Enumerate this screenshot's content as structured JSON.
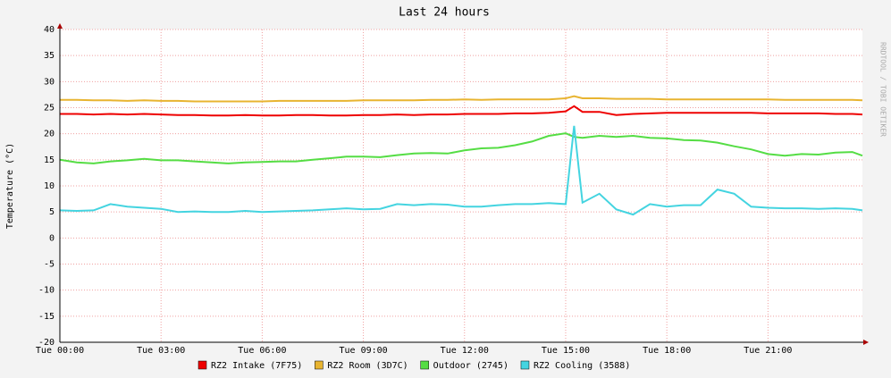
{
  "chart_data": {
    "type": "line",
    "title": "Last 24 hours",
    "y_label": "Temperature (°C)",
    "side_label": "RRDTOOL / TOBI OETIKER",
    "x": [
      0,
      0.5,
      1,
      1.5,
      2,
      2.5,
      3,
      3.5,
      4,
      4.5,
      5,
      5.5,
      6,
      6.5,
      7,
      7.5,
      8,
      8.5,
      9,
      9.5,
      10,
      10.5,
      11,
      11.5,
      12,
      12.5,
      13,
      13.5,
      14,
      14.5,
      15,
      15.25,
      15.5,
      16,
      16.5,
      17,
      17.5,
      18,
      18.5,
      19,
      19.5,
      20,
      20.5,
      21,
      21.5,
      22,
      22.5,
      23,
      23.5,
      23.8
    ],
    "xlim": [
      0,
      23.8
    ],
    "xticks": [
      {
        "value": 0,
        "label": "Tue 00:00"
      },
      {
        "value": 3,
        "label": "Tue 03:00"
      },
      {
        "value": 6,
        "label": "Tue 06:00"
      },
      {
        "value": 9,
        "label": "Tue 09:00"
      },
      {
        "value": 12,
        "label": "Tue 12:00"
      },
      {
        "value": 15,
        "label": "Tue 15:00"
      },
      {
        "value": 18,
        "label": "Tue 18:00"
      },
      {
        "value": 21,
        "label": "Tue 21:00"
      }
    ],
    "ylim": [
      -20,
      40
    ],
    "yticks": [
      -20,
      -15,
      -10,
      -5,
      0,
      5,
      10,
      15,
      20,
      25,
      30,
      35,
      40
    ],
    "grid": true,
    "series": [
      {
        "name": "RZ2 Intake (7F75)",
        "color": "#ee0000",
        "values": [
          23.8,
          23.8,
          23.7,
          23.8,
          23.7,
          23.8,
          23.7,
          23.6,
          23.6,
          23.5,
          23.5,
          23.6,
          23.5,
          23.5,
          23.6,
          23.6,
          23.5,
          23.5,
          23.6,
          23.6,
          23.7,
          23.6,
          23.7,
          23.7,
          23.8,
          23.8,
          23.8,
          23.9,
          23.9,
          24.0,
          24.3,
          25.3,
          24.2,
          24.2,
          23.6,
          23.8,
          23.9,
          24.0,
          24.0,
          24.0,
          24.0,
          24.0,
          24.0,
          23.9,
          23.9,
          23.9,
          23.9,
          23.8,
          23.8,
          23.7
        ]
      },
      {
        "name": "RZ2 Room (3D7C)",
        "color": "#e8b430",
        "values": [
          26.5,
          26.5,
          26.4,
          26.4,
          26.3,
          26.4,
          26.3,
          26.3,
          26.2,
          26.2,
          26.2,
          26.2,
          26.2,
          26.3,
          26.3,
          26.3,
          26.3,
          26.3,
          26.4,
          26.4,
          26.4,
          26.4,
          26.5,
          26.5,
          26.6,
          26.5,
          26.6,
          26.6,
          26.6,
          26.6,
          26.8,
          27.2,
          26.8,
          26.8,
          26.7,
          26.7,
          26.7,
          26.6,
          26.6,
          26.6,
          26.6,
          26.6,
          26.6,
          26.6,
          26.5,
          26.5,
          26.5,
          26.5,
          26.5,
          26.4
        ]
      },
      {
        "name": "Outdoor (2745)",
        "color": "#55dd44",
        "values": [
          15.0,
          14.5,
          14.3,
          14.7,
          14.9,
          15.2,
          14.9,
          14.9,
          14.7,
          14.5,
          14.3,
          14.5,
          14.6,
          14.7,
          14.7,
          15.0,
          15.3,
          15.6,
          15.6,
          15.5,
          15.9,
          16.2,
          16.3,
          16.2,
          16.8,
          17.2,
          17.3,
          17.8,
          18.5,
          19.6,
          20.1,
          19.4,
          19.2,
          19.6,
          19.4,
          19.6,
          19.2,
          19.1,
          18.8,
          18.7,
          18.3,
          17.6,
          17.0,
          16.1,
          15.8,
          16.1,
          16.0,
          16.4,
          16.5,
          15.8
        ]
      },
      {
        "name": "RZ2 Cooling (3588)",
        "color": "#44d4e0",
        "values": [
          5.3,
          5.2,
          5.3,
          6.5,
          6.0,
          5.8,
          5.6,
          5.0,
          5.1,
          5.0,
          5.0,
          5.2,
          5.0,
          5.1,
          5.2,
          5.3,
          5.5,
          5.7,
          5.5,
          5.6,
          6.5,
          6.3,
          6.5,
          6.4,
          6.0,
          6.0,
          6.3,
          6.5,
          6.5,
          6.7,
          6.5,
          21.5,
          6.8,
          8.5,
          5.5,
          4.5,
          6.5,
          6.0,
          6.3,
          6.3,
          9.3,
          8.5,
          6.0,
          5.8,
          5.7,
          5.7,
          5.6,
          5.7,
          5.6,
          5.3
        ]
      }
    ]
  }
}
